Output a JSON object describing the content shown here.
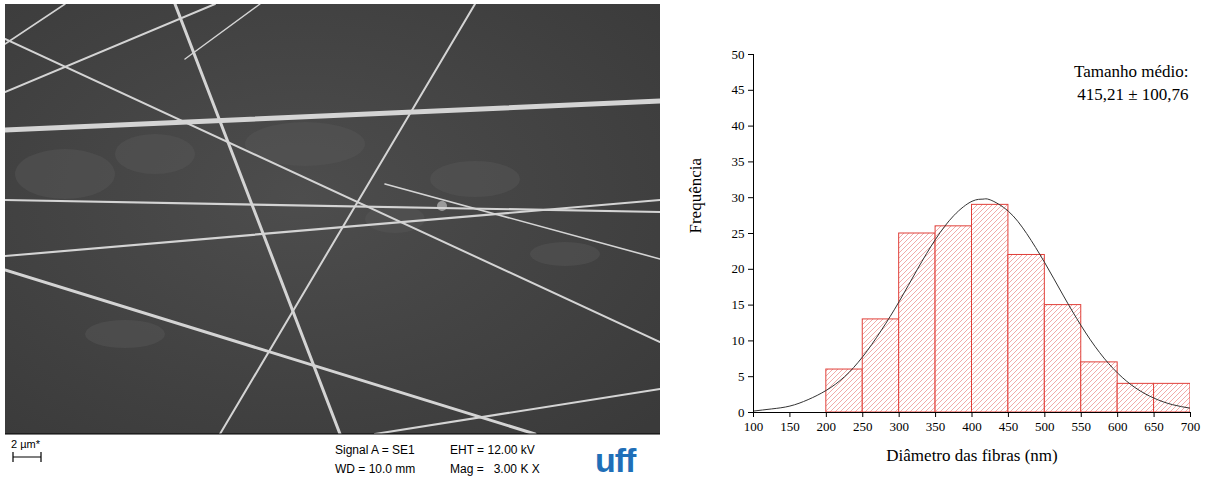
{
  "chart_data": {
    "type": "histogram",
    "x_label": "Diâmetro das fibras (nm)",
    "y_label": "Frequência",
    "annotations": [
      "Tamanho médio:",
      "415,21 ± 100,76"
    ],
    "bins": [
      200,
      250,
      300,
      350,
      400,
      450,
      500,
      550,
      600,
      650,
      700
    ],
    "values": [
      6,
      13,
      25,
      26,
      29,
      22,
      15,
      7,
      4,
      4
    ],
    "color": "#e0403a",
    "curve": {
      "x": [
        100,
        125,
        150,
        175,
        200,
        225,
        250,
        275,
        300,
        325,
        350,
        375,
        400,
        415,
        425,
        450,
        475,
        500,
        525,
        550,
        575,
        600,
        625,
        650,
        675,
        700
      ],
      "values": [
        0.2,
        0.5,
        0.9,
        1.8,
        3.1,
        5.0,
        7.8,
        11.4,
        15.5,
        20.0,
        24.2,
        27.5,
        29.5,
        29.8,
        29.7,
        28.1,
        25.0,
        20.9,
        16.4,
        12.1,
        8.4,
        5.5,
        3.4,
        2.0,
        1.1,
        0.6
      ],
      "color": "#333333"
    },
    "xlim": [
      100,
      700
    ],
    "xticks": [
      100,
      150,
      200,
      250,
      300,
      350,
      400,
      450,
      500,
      550,
      600,
      650,
      700
    ],
    "ylim": [
      0,
      50
    ],
    "yticks": [
      0,
      5,
      10,
      15,
      20,
      25,
      30,
      35,
      40,
      45,
      50
    ],
    "grid": false
  },
  "micrograph": {
    "scale_bar": "2 µm*",
    "signal": "Signal A = SE1",
    "wd": "WD = 10.0 mm",
    "eht": "EHT = 12.00 kV",
    "mag": "Mag =   3.00 K X",
    "logo": "uff"
  }
}
